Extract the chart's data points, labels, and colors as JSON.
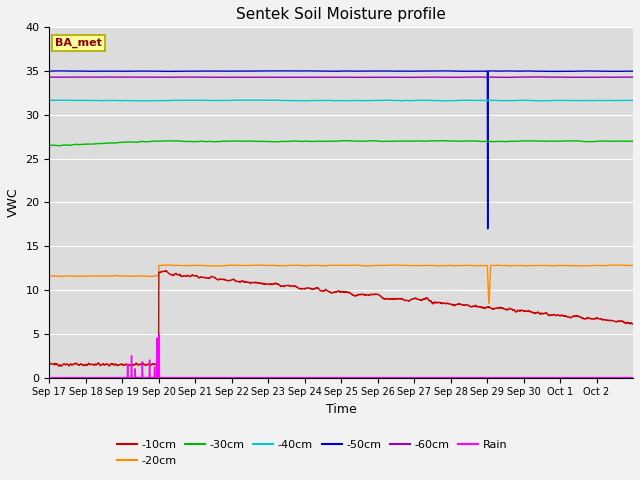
{
  "title": "Sentek Soil Moisture profile",
  "xlabel": "Time",
  "ylabel": "VWC",
  "annotation": "BA_met",
  "ylim": [
    0,
    40
  ],
  "background_color": "#dcdcdc",
  "line_colors": {
    "-10cm": "#cc0000",
    "-20cm": "#ff8c00",
    "-30cm": "#00bb00",
    "-40cm": "#00cccc",
    "-50cm": "#0000cc",
    "-60cm": "#9900bb",
    "Rain": "#ff00ff"
  },
  "tick_labels": [
    "Sep 17",
    "Sep 18",
    "Sep 19",
    "Sep 20",
    "Sep 21",
    "Sep 22",
    "Sep 23",
    "Sep 24",
    "Sep 25",
    "Sep 26",
    "Sep 27",
    "Sep 28",
    "Sep 29",
    "Sep 30",
    "Oct 1",
    "Oct 2"
  ],
  "grid_color": "#ffffff",
  "legend_fontsize": 8,
  "title_fontsize": 11,
  "figwidth": 6.4,
  "figheight": 4.8,
  "dpi": 100
}
